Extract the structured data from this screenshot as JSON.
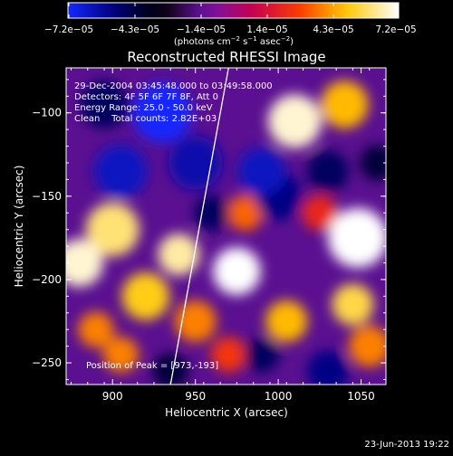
{
  "chart_data": {
    "type": "heatmap",
    "title": "Reconstructed RHESSI Image",
    "xlabel": "Heliocentric X (arcsec)",
    "ylabel": "Heliocentric Y (arcsec)",
    "xlim": [
      872,
      1065
    ],
    "ylim": [
      -263,
      -73
    ],
    "x_ticks": [
      900,
      950,
      1000,
      1050
    ],
    "y_ticks": [
      -250,
      -200,
      -150,
      -100
    ],
    "x_tick_labels": [
      "900",
      "950",
      "1000",
      "1050"
    ],
    "y_tick_labels": [
      "−250",
      "−200",
      "−150",
      "−100"
    ],
    "colorbar": {
      "min": -7.2e-05,
      "max": 7.2e-05,
      "tick_labels": [
        "−7.2e−05",
        "−4.3e−05",
        "−1.4e−05",
        "1.4e−05",
        "4.3e−05",
        "7.2e−05"
      ],
      "unit_main": "(photons cm",
      "unit_sup1": "−2",
      "unit_mid1": " s",
      "unit_sup2": "−1",
      "unit_mid2": " asec",
      "unit_sup3": "−2",
      "unit_end": ")"
    },
    "annotations": {
      "time_range": "29-Dec-2004 03:45:48.000 to 03:49:58.000",
      "detectors": "Detectors: 4F 5F 6F 7F 8F, Att 0",
      "energy": "Energy Range: 25.0 - 50.0 keV",
      "clean": "Clean    Total counts: 2.82E+03",
      "peak": "Position of Peak = [973,-193]"
    },
    "peak_position": [
      973,
      -193
    ],
    "limb_line": [
      [
        935,
        -263
      ],
      [
        970,
        -73
      ]
    ],
    "blobs": [
      {
        "x": 1048,
        "y": -175,
        "v": 1.0,
        "r": 20
      },
      {
        "x": 975,
        "y": -195,
        "v": 1.0,
        "r": 16
      },
      {
        "x": 1010,
        "y": -105,
        "v": 0.95,
        "r": 18
      },
      {
        "x": 1040,
        "y": -95,
        "v": 0.7,
        "r": 16
      },
      {
        "x": 880,
        "y": -190,
        "v": 0.95,
        "r": 16
      },
      {
        "x": 900,
        "y": -170,
        "v": 0.85,
        "r": 18
      },
      {
        "x": 940,
        "y": -185,
        "v": 0.9,
        "r": 14
      },
      {
        "x": 920,
        "y": -210,
        "v": 0.75,
        "r": 16
      },
      {
        "x": 950,
        "y": -225,
        "v": 0.6,
        "r": 14
      },
      {
        "x": 1005,
        "y": -225,
        "v": 0.7,
        "r": 14
      },
      {
        "x": 1045,
        "y": -215,
        "v": 0.8,
        "r": 14
      },
      {
        "x": 1055,
        "y": -240,
        "v": 0.6,
        "r": 14
      },
      {
        "x": 980,
        "y": -160,
        "v": 0.55,
        "r": 12
      },
      {
        "x": 905,
        "y": -245,
        "v": 0.6,
        "r": 12
      },
      {
        "x": 970,
        "y": -245,
        "v": 0.45,
        "r": 12
      },
      {
        "x": 1025,
        "y": -160,
        "v": 0.4,
        "r": 12
      },
      {
        "x": 890,
        "y": -230,
        "v": 0.6,
        "r": 12
      },
      {
        "x": 930,
        "y": -100,
        "v": -1.0,
        "r": 20
      },
      {
        "x": 895,
        "y": -95,
        "v": -0.6,
        "r": 16
      },
      {
        "x": 905,
        "y": -135,
        "v": -0.85,
        "r": 18
      },
      {
        "x": 950,
        "y": -130,
        "v": -0.8,
        "r": 18
      },
      {
        "x": 990,
        "y": -135,
        "v": -0.85,
        "r": 16
      },
      {
        "x": 1000,
        "y": -150,
        "v": -0.7,
        "r": 16
      },
      {
        "x": 1030,
        "y": -135,
        "v": -0.6,
        "r": 14
      },
      {
        "x": 1030,
        "y": -255,
        "v": -0.7,
        "r": 14
      },
      {
        "x": 990,
        "y": -245,
        "v": -0.6,
        "r": 12
      },
      {
        "x": 960,
        "y": -160,
        "v": -0.6,
        "r": 12
      },
      {
        "x": 1060,
        "y": -130,
        "v": -0.5,
        "r": 12
      },
      {
        "x": 935,
        "y": -255,
        "v": -0.5,
        "r": 12
      }
    ]
  },
  "footer": {
    "date": "23-Jun-2013 19:22"
  }
}
